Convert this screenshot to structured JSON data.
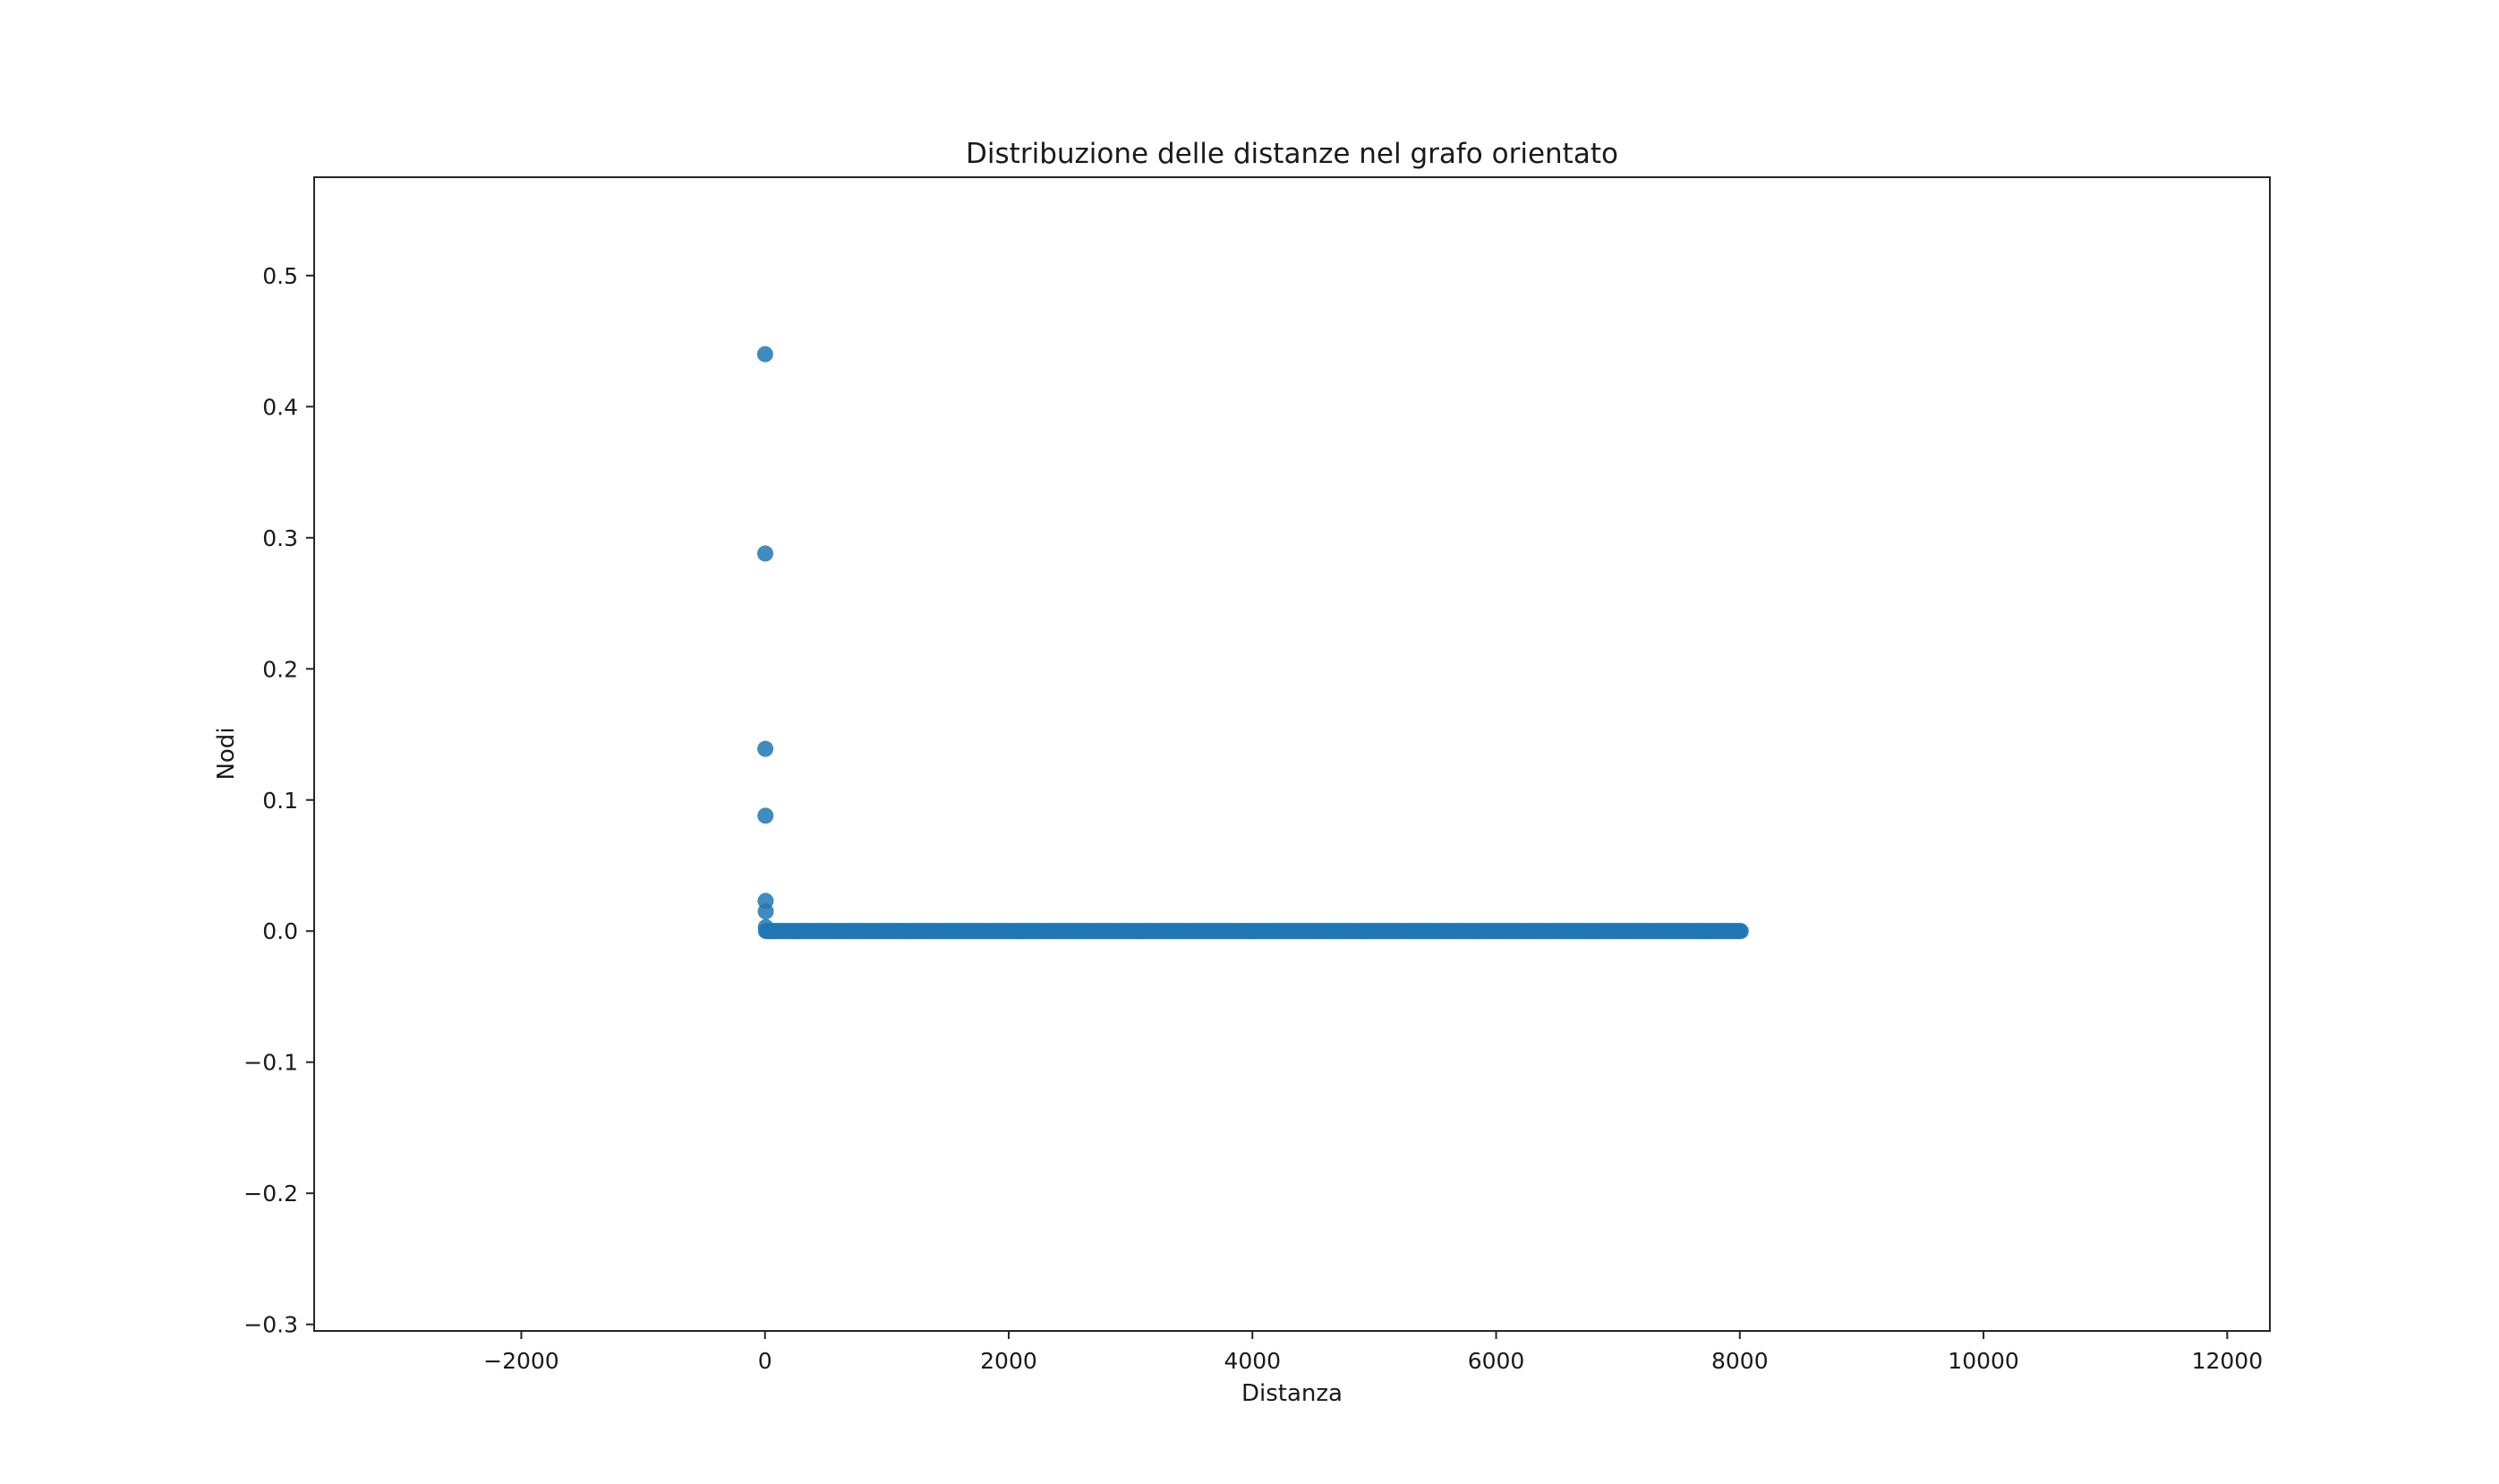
{
  "chart_data": {
    "type": "scatter",
    "title": "Distribuzione delle distanze nel grafo orientato",
    "xlabel": "Distanza",
    "ylabel": "Nodi",
    "xlim": [
      -3700,
      12350
    ],
    "ylim": [
      -0.305,
      0.575
    ],
    "xticks": [
      -2000,
      0,
      2000,
      4000,
      6000,
      8000,
      10000,
      12000
    ],
    "xtick_labels": [
      "−2000",
      "0",
      "2000",
      "4000",
      "6000",
      "8000",
      "10000",
      "12000"
    ],
    "yticks": [
      -0.3,
      -0.2,
      -0.1,
      0.0,
      0.1,
      0.2,
      0.3,
      0.4,
      0.5
    ],
    "ytick_labels": [
      "−0.3",
      "−0.2",
      "−0.1",
      "0.0",
      "0.1",
      "0.2",
      "0.3",
      "0.4",
      "0.5"
    ],
    "grid": false,
    "marker_color": "#1f77b4",
    "series": [
      {
        "values_note": "",
        "x": [
          1,
          2,
          3,
          4,
          5,
          6,
          7
        ],
        "y": [
          0.44,
          0.288,
          0.139,
          0.088,
          0.023,
          0.015,
          0.003
        ],
        "flat_run": {
          "x_start": 8,
          "x_end": 8010,
          "y": 0.0
        }
      }
    ]
  }
}
